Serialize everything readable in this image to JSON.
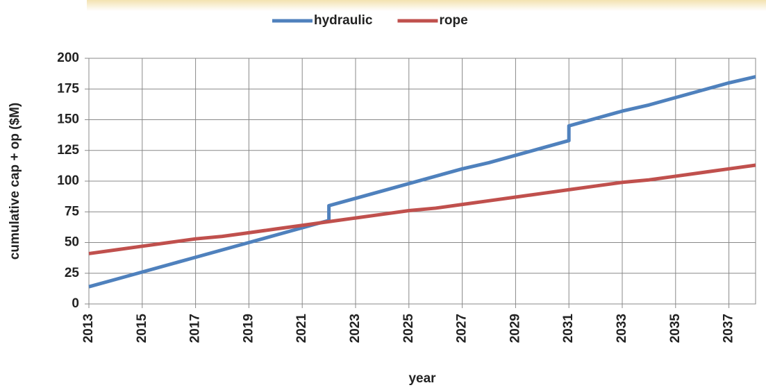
{
  "chart_data": {
    "type": "line",
    "x": [
      2013,
      2014,
      2015,
      2016,
      2017,
      2018,
      2019,
      2020,
      2021,
      2022,
      2022,
      2023,
      2024,
      2025,
      2026,
      2027,
      2028,
      2029,
      2030,
      2031,
      2031,
      2032,
      2033,
      2034,
      2035,
      2036,
      2037,
      2038
    ],
    "series": [
      {
        "name": "hydraulic",
        "color": "#4f81bd",
        "values": [
          14,
          20,
          26,
          32,
          38,
          44,
          50,
          56,
          62,
          68,
          80,
          86,
          92,
          98,
          104,
          110,
          115,
          121,
          127,
          133,
          145,
          151,
          157,
          162,
          168,
          174,
          180,
          185
        ]
      },
      {
        "name": "rope",
        "color": "#c0504d",
        "values": [
          41,
          44,
          47,
          50,
          53,
          55,
          58,
          61,
          64,
          67,
          67,
          70,
          73,
          76,
          78,
          81,
          84,
          87,
          90,
          93,
          93,
          96,
          99,
          101,
          104,
          107,
          110,
          113
        ]
      }
    ],
    "xlabel": "year",
    "ylabel": "cumulative cap + op ($M)",
    "xlim": [
      2013,
      2038
    ],
    "xticks": [
      2013,
      2015,
      2017,
      2019,
      2021,
      2023,
      2025,
      2027,
      2029,
      2031,
      2033,
      2035,
      2037
    ],
    "ylim": [
      0,
      200
    ],
    "yticks": [
      0,
      25,
      50,
      75,
      100,
      125,
      150,
      175,
      200
    ],
    "grid": true,
    "legend": "top"
  }
}
